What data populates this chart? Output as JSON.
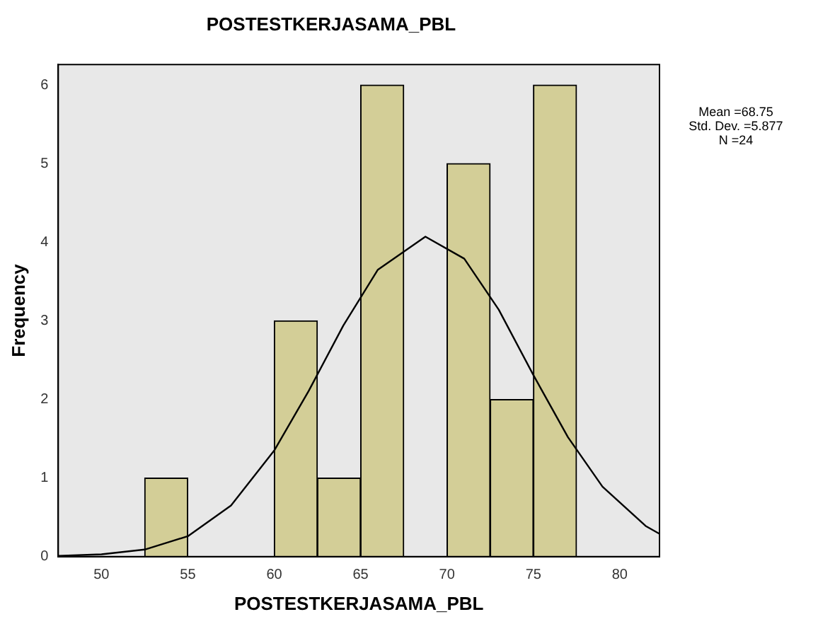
{
  "chart_data": {
    "type": "histogram",
    "title": "POSTESTKERJASAMA_PBL",
    "xlabel": "POSTESTKERJASAMA_PBL",
    "ylabel": "Frequency",
    "bins": [
      52.5,
      55,
      57.5,
      60,
      62.5,
      65,
      67.5,
      70,
      72.5,
      75,
      77.5
    ],
    "values": [
      1,
      0,
      0,
      3,
      1,
      6,
      0,
      5,
      2,
      6
    ],
    "color": "#d3ce97",
    "series": [
      {
        "type": "line",
        "color": "#000000",
        "x": [
          47.5,
          50,
          52.5,
          55,
          57.5,
          60,
          62,
          64,
          66,
          68.75,
          71,
          73,
          75,
          77,
          79,
          81.5,
          82.3
        ],
        "values": [
          0.01,
          0.03,
          0.09,
          0.26,
          0.65,
          1.35,
          2.11,
          2.94,
          3.65,
          4.07,
          3.79,
          3.14,
          2.31,
          1.52,
          0.89,
          0.39,
          0.29
        ]
      }
    ],
    "xlim": [
      47.5,
      82.3
    ],
    "xticks": [
      50,
      55,
      60,
      65,
      70,
      75,
      80
    ],
    "ylim": [
      0,
      6.26
    ],
    "yticks": [
      0,
      1,
      2,
      3,
      4,
      5,
      6
    ],
    "annotations": [
      "Mean =68.75",
      "Std. Dev. =5.877",
      "N =24"
    ],
    "grid": false,
    "legend": false,
    "marker": "none"
  }
}
